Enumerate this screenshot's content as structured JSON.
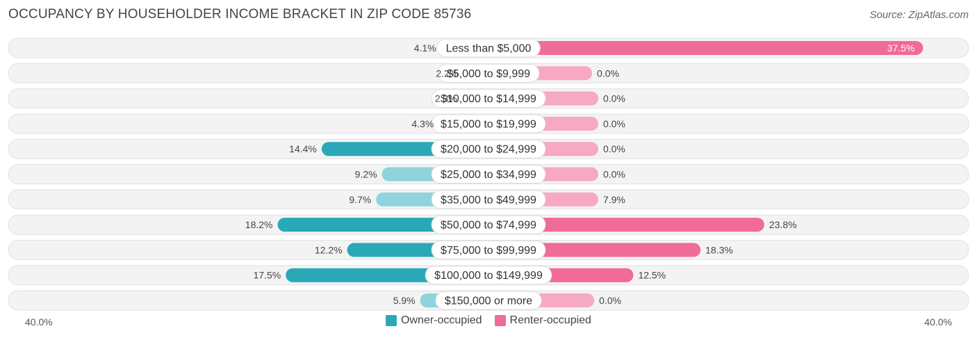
{
  "title": "OCCUPANCY BY HOUSEHOLDER INCOME BRACKET IN ZIP CODE 85736",
  "source": "Source: ZipAtlas.com",
  "colors": {
    "owner_strong": "#2aa8b8",
    "owner_light": "#8fd3dc",
    "renter_strong": "#f06b96",
    "renter_light": "#f7a8c2",
    "track": "#f0f0f0"
  },
  "chart_data": {
    "type": "bar",
    "orientation": "horizontal-diverging",
    "categories": [
      "Less than $5,000",
      "$5,000 to $9,999",
      "$10,000 to $14,999",
      "$15,000 to $19,999",
      "$20,000 to $24,999",
      "$25,000 to $34,999",
      "$35,000 to $49,999",
      "$50,000 to $74,999",
      "$75,000 to $99,999",
      "$100,000 to $149,999",
      "$150,000 or more"
    ],
    "series": [
      {
        "name": "Owner-occupied",
        "values": [
          4.1,
          2.2,
          2.3,
          4.3,
          14.4,
          9.2,
          9.7,
          18.2,
          12.2,
          17.5,
          5.9
        ],
        "labels": [
          "4.1%",
          "2.2%",
          "2.3%",
          "4.3%",
          "14.4%",
          "9.2%",
          "9.7%",
          "18.2%",
          "12.2%",
          "17.5%",
          "5.9%"
        ]
      },
      {
        "name": "Renter-occupied",
        "values": [
          37.5,
          0.0,
          0.0,
          0.0,
          0.0,
          0.0,
          7.9,
          23.8,
          18.3,
          12.5,
          0.0
        ],
        "labels": [
          "37.5%",
          "0.0%",
          "0.0%",
          "0.0%",
          "0.0%",
          "0.0%",
          "7.9%",
          "23.8%",
          "18.3%",
          "12.5%",
          "0.0%"
        ]
      }
    ],
    "axis_left_label": "40.0%",
    "axis_right_label": "40.0%",
    "xlim": [
      -40,
      40
    ],
    "legend_placement": "bottom-center"
  }
}
